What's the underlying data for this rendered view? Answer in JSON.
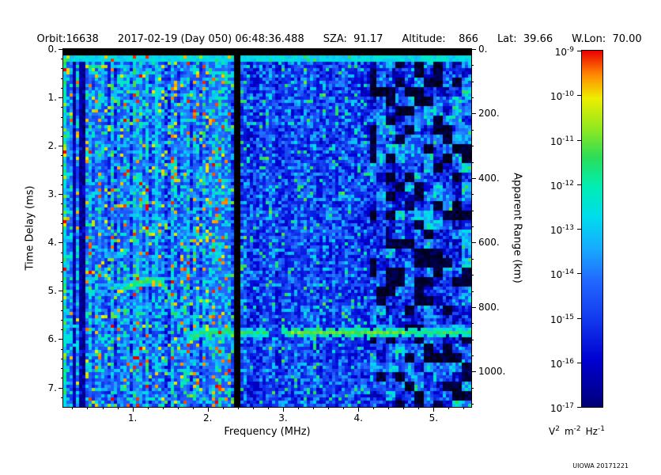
{
  "header": {
    "orbit": "Orbit:16638",
    "datetime": "2017-02-19 (Day 050) 06:48:36.488",
    "sza": "SZA:  91.17",
    "altitude": "Altitude:    866",
    "lat": "Lat:  39.66",
    "wlon": "W.Lon:  70.00"
  },
  "credit": "UIOWA 20171221",
  "chart_data": {
    "type": "heatmap",
    "subtype": "radar-sounder-ionogram-spectrogram",
    "title": "",
    "xlabel": "Frequency (MHz)",
    "ylabel_left": "Time Delay (ms)",
    "ylabel_right": "Apparent Range (km)",
    "x_range": [
      0.08,
      5.5
    ],
    "x_ticks": [
      1,
      2,
      3,
      4,
      5
    ],
    "x_tick_labels": [
      "1.",
      "2.",
      "3.",
      "4.",
      "5."
    ],
    "y_range": [
      0,
      7.4
    ],
    "y_ticks": [
      0,
      1,
      2,
      3,
      4,
      5,
      6,
      7
    ],
    "y_tick_labels": [
      "0.",
      "1.",
      "2.",
      "3.",
      "4.",
      "5.",
      "6.",
      "7."
    ],
    "right_ticks_km": [
      0,
      200,
      400,
      600,
      800,
      1000
    ],
    "right_tick_labels": [
      "0.",
      "200.",
      "400.",
      "600.",
      "800.",
      "1000."
    ],
    "km_per_ms": 149.9,
    "colorbar": {
      "base": "10",
      "tick_exponents": [
        "-9",
        "-10",
        "-11",
        "-12",
        "-13",
        "-14",
        "-15",
        "-16",
        "-17"
      ],
      "unit_parts": [
        [
          "V",
          "2"
        ],
        [
          "m",
          "-2"
        ],
        [
          "Hz",
          "-1"
        ]
      ],
      "scale_min": "1e-17",
      "scale_max": "1e-9"
    },
    "colormap": [
      [
        0.0,
        "#000000"
      ],
      [
        0.05,
        "#000038"
      ],
      [
        0.13,
        "#000090"
      ],
      [
        0.22,
        "#0000d0"
      ],
      [
        0.32,
        "#1238ee"
      ],
      [
        0.42,
        "#2268ff"
      ],
      [
        0.5,
        "#18aaff"
      ],
      [
        0.58,
        "#00dcee"
      ],
      [
        0.66,
        "#00eeb0"
      ],
      [
        0.73,
        "#2add5a"
      ],
      [
        0.8,
        "#8ce822"
      ],
      [
        0.88,
        "#eeee00"
      ],
      [
        0.94,
        "#ff8800"
      ],
      [
        1.0,
        "#e80000"
      ]
    ],
    "noise_seed": 16638,
    "features": {
      "top_blank_td": 0.13,
      "surface_line_td": 0.2,
      "blank_stripe_f": [
        2.34,
        2.43
      ],
      "dark_stripes_f": [
        [
          0.2,
          0.26
        ],
        [
          0.31,
          0.37
        ]
      ],
      "plasma_line": {
        "f": 1.33,
        "halfwidth": 0.026,
        "td_start": 0.25,
        "td_end": 4.72
      },
      "echo_trace": {
        "f_start": 0.8,
        "f_nose": 1.3,
        "f_end": 1.68,
        "td_min": 4.78,
        "left_coeff": 0.25,
        "right_coeff": 1.5,
        "right_exp": 2.2,
        "td_cutoff": 5.9
      },
      "ground_line": {
        "f_start": 1.74,
        "td": 5.86,
        "bend_f": 2.0,
        "bend_coeff": 2.2,
        "dim_f": [
          2.82,
          2.96
        ],
        "bright_f": [
          3.05,
          4.6
        ]
      },
      "region_bounds_f": [
        2.33,
        4.15
      ]
    }
  }
}
